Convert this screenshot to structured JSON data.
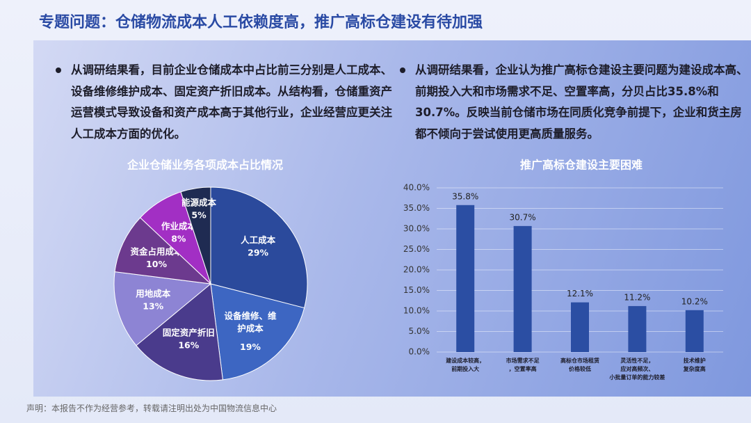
{
  "header": {
    "title": "专题问题：仓储物流成本人工依赖度高，推广高标仓建设有待加强"
  },
  "paragraphs": [
    "从调研结果看，目前企业仓储成本中占比前三分别是人工成本、设备维修维护成本、固定资产折旧成本。从结构看，仓储重资产运营模式导致设备和资产成本高于其他行业，企业经营应更关注人工成本方面的优化。",
    "从调研结果看，企业认为推广高标仓建设主要问题为建设成本高、前期投入大和市场需求不足、空置率高，分贝占比35.8%和30.7%。反映当前仓储市场在同质化竞争前提下，企业和货主房都不倾向于尝试使用更高质量服务。"
  ],
  "footer": "声明：本报告不作为经营参考，转载请注明出处为中国物流信息中心",
  "chart_data": [
    {
      "type": "pie",
      "title": "企业仓储业务各项成本占比情况",
      "categories": [
        "人工成本",
        "设备维修、维护成本",
        "固定资产折旧",
        "用地成本",
        "资金占用成本",
        "作业成本",
        "能源成本"
      ],
      "values": [
        29,
        19,
        16,
        13,
        10,
        8,
        5
      ],
      "value_labels": [
        "29%",
        "19%",
        "16%",
        "13%",
        "10%",
        "8%",
        "5%"
      ],
      "colors": [
        "#2b4a9c",
        "#3d66c2",
        "#4a3b8c",
        "#8d84d4",
        "#6c3a8e",
        "#a22fc4",
        "#1f2b52"
      ]
    },
    {
      "type": "bar",
      "title": "推广高标仓建设主要困难",
      "categories": [
        "建设成本较高，\n前期投入大",
        "市场需求不足\n，空置率高",
        "高标仓市场租赁\n价格较低",
        "灵活性不足，\n应对高频次、\n小批量订单的能力较差",
        "技术维护\n复杂度高"
      ],
      "values": [
        35.8,
        30.7,
        12.1,
        11.2,
        10.2
      ],
      "value_labels": [
        "35.8%",
        "30.7%",
        "12.1%",
        "11.2%",
        "10.2%"
      ],
      "color": "#2b4ea3",
      "ylim": [
        0,
        40
      ],
      "yticks": [
        {
          "value": 0,
          "label": "0.0%"
        },
        {
          "value": 5,
          "label": "5.0%"
        },
        {
          "value": 10,
          "label": "10.0%"
        },
        {
          "value": 15,
          "label": "15.0%"
        },
        {
          "value": 20,
          "label": "20.0%"
        },
        {
          "value": 25,
          "label": "25.0%"
        },
        {
          "value": 30,
          "label": "30.0%"
        },
        {
          "value": 35,
          "label": "35.0%"
        },
        {
          "value": 40,
          "label": "40.0%"
        }
      ]
    }
  ]
}
